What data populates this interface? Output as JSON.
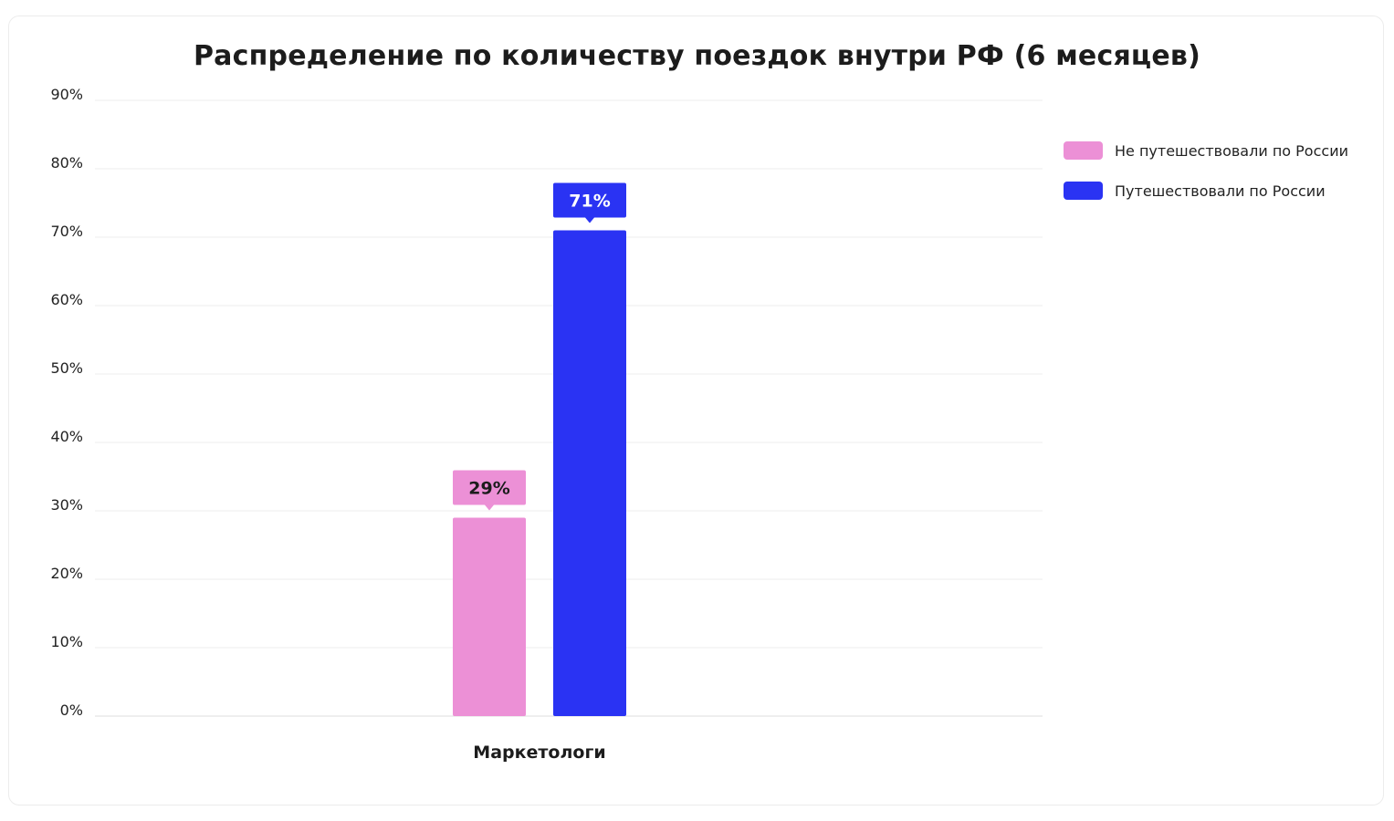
{
  "chart_data": {
    "type": "bar",
    "title": "Распределение по количеству поездок внутри РФ (6 месяцев)",
    "categories": [
      "Маркетологи"
    ],
    "series": [
      {
        "name": "Не путешествовали по России",
        "values": [
          29
        ],
        "labels": [
          "29%"
        ],
        "color": "#ec90d6",
        "label_text_color": "#1c1c1c"
      },
      {
        "name": "Путешествовали по России",
        "values": [
          71
        ],
        "labels": [
          "71%"
        ],
        "color": "#2a33f3",
        "label_text_color": "#ffffff"
      }
    ],
    "ylim": [
      0,
      90
    ],
    "yticks": [
      0,
      10,
      20,
      30,
      40,
      50,
      60,
      70,
      80,
      90
    ],
    "ytick_labels": [
      "0%",
      "10%",
      "20%",
      "30%",
      "40%",
      "50%",
      "60%",
      "70%",
      "80%",
      "90%"
    ],
    "xlabel": "",
    "ylabel": "",
    "grid": true,
    "legend_position": "top-right"
  }
}
